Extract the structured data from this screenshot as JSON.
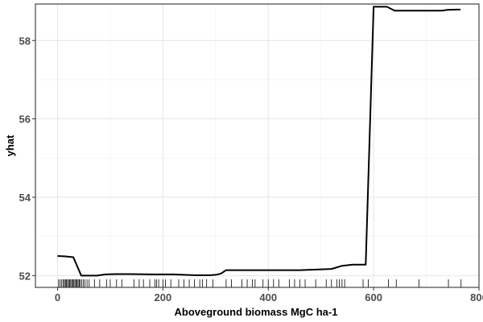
{
  "chart_data": {
    "type": "line",
    "title": "",
    "xlabel": "Aboveground biomass MgC ha-1",
    "ylabel": "yhat",
    "xlim": [
      -42,
      800
    ],
    "ylim": [
      51.7,
      58.93
    ],
    "x_ticks": [
      0,
      200,
      400,
      600,
      800
    ],
    "y_ticks": [
      52,
      54,
      56,
      58
    ],
    "x_tick_labels": [
      "0",
      "200",
      "400",
      "600",
      "800"
    ],
    "y_tick_labels": [
      "52",
      "54",
      "56",
      "58"
    ],
    "grid": true,
    "series": [
      {
        "color": "#000000",
        "x": [
          0,
          15,
          30,
          45,
          60,
          75,
          90,
          110,
          140,
          180,
          220,
          260,
          290,
          300,
          310,
          320,
          340,
          400,
          460,
          480,
          520,
          540,
          560,
          580,
          585,
          600,
          625,
          640,
          660,
          700,
          730,
          740,
          760,
          765
        ],
        "y": [
          52.5,
          52.49,
          52.47,
          52.0,
          52.0,
          52.0,
          52.03,
          52.04,
          52.04,
          52.03,
          52.03,
          52.01,
          52.01,
          52.02,
          52.05,
          52.14,
          52.14,
          52.14,
          52.14,
          52.15,
          52.17,
          52.25,
          52.28,
          52.28,
          52.28,
          58.86,
          58.86,
          58.76,
          58.76,
          58.76,
          58.76,
          58.78,
          58.79,
          58.79
        ]
      }
    ],
    "rug": [
      2,
      5,
      8,
      11,
      13,
      15,
      17,
      19,
      21,
      23,
      25,
      27,
      29,
      31,
      33,
      35,
      37,
      39,
      41,
      43,
      46,
      49,
      52,
      56,
      60,
      70,
      80,
      93,
      100,
      112,
      122,
      145,
      155,
      163,
      175,
      185,
      188,
      192,
      200,
      205,
      215,
      230,
      240,
      250,
      260,
      270,
      275,
      283,
      295,
      320,
      330,
      350,
      360,
      370,
      375,
      390,
      400,
      410,
      420,
      440,
      450,
      460,
      470,
      490,
      510,
      520,
      530,
      535,
      540,
      545,
      580,
      590,
      628,
      643,
      686,
      742,
      766
    ]
  }
}
